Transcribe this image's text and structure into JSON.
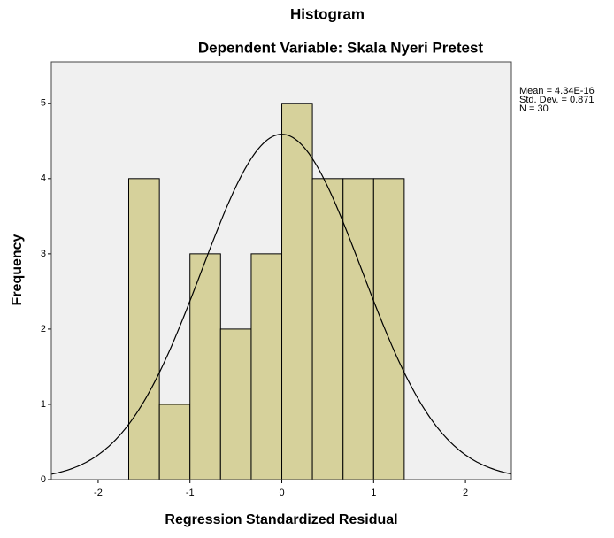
{
  "chart_data": {
    "type": "histogram",
    "title": "Histogram",
    "subtitle": "Dependent Variable: Skala Nyeri Pretest",
    "x_label": "Regression Standardized Residual",
    "y_label": "Frequency",
    "bins": [
      -1.667,
      -1.333,
      -1,
      -0.667,
      -0.333,
      0,
      0.333,
      0.667,
      1,
      1.333
    ],
    "values": [
      4,
      1,
      3,
      2,
      3,
      5,
      4,
      4,
      4
    ],
    "color": "#d6d19b",
    "xlim": [
      -2.51,
      2.5
    ],
    "ylim": [
      0,
      5.55
    ],
    "xticks": [
      -2,
      -1,
      0,
      1,
      2
    ],
    "yticks": [
      0,
      1,
      2,
      3,
      4,
      5
    ],
    "normal_curve": {
      "mean": 4.34e-16,
      "std_dev": 0.871,
      "n": 30
    },
    "stats_labels": [
      "Mean = 4.34E-16",
      "Std. Dev. = 0.871",
      "N = 30"
    ]
  }
}
